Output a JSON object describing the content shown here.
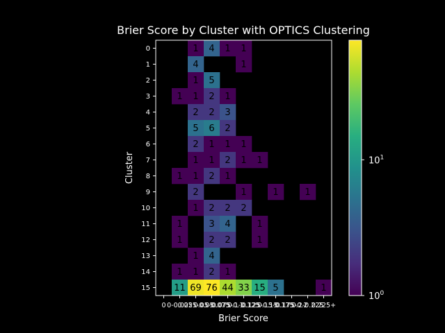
{
  "chart_data": {
    "type": "heatmap",
    "title": "Brier Score by Cluster with OPTICS Clustering",
    "xlabel": "Brier Score",
    "ylabel": "Cluster",
    "x_tick_labels": [
      "0",
      "0-0.025",
      "0.025-0.05",
      "0.05-0.075",
      "0.075-0.1",
      "0.1-0.125",
      "0.125-0.15",
      "0.15-0.175",
      "0.175-0.2",
      "0.2-0.225",
      "0.225+"
    ],
    "y_tick_labels": [
      "0",
      "1",
      "2",
      "3",
      "4",
      "5",
      "6",
      "7",
      "8",
      "9",
      "10",
      "11",
      "12",
      "13",
      "14",
      "15"
    ],
    "values": [
      [
        null,
        null,
        1,
        4,
        1,
        1,
        null,
        null,
        null,
        null,
        null
      ],
      [
        null,
        null,
        4,
        null,
        null,
        1,
        null,
        null,
        null,
        null,
        null
      ],
      [
        null,
        null,
        1,
        5,
        null,
        null,
        null,
        null,
        null,
        null,
        null
      ],
      [
        null,
        1,
        1,
        2,
        1,
        null,
        null,
        null,
        null,
        null,
        null
      ],
      [
        null,
        null,
        2,
        2,
        3,
        null,
        null,
        null,
        null,
        null,
        null
      ],
      [
        null,
        null,
        5,
        6,
        2,
        null,
        null,
        null,
        null,
        null,
        null
      ],
      [
        null,
        null,
        2,
        1,
        1,
        1,
        null,
        null,
        null,
        null,
        null
      ],
      [
        null,
        null,
        1,
        1,
        2,
        1,
        1,
        null,
        null,
        null,
        null
      ],
      [
        null,
        1,
        1,
        2,
        1,
        null,
        null,
        null,
        null,
        null,
        null
      ],
      [
        null,
        null,
        2,
        null,
        null,
        1,
        null,
        1,
        null,
        1,
        null
      ],
      [
        null,
        null,
        1,
        2,
        2,
        2,
        null,
        null,
        null,
        null,
        null
      ],
      [
        null,
        1,
        null,
        3,
        4,
        null,
        1,
        null,
        null,
        null,
        null
      ],
      [
        null,
        1,
        null,
        2,
        2,
        null,
        1,
        null,
        null,
        null,
        null
      ],
      [
        null,
        null,
        1,
        4,
        null,
        null,
        null,
        null,
        null,
        null,
        null
      ],
      [
        null,
        1,
        1,
        2,
        1,
        null,
        null,
        null,
        null,
        null,
        null
      ],
      [
        null,
        11,
        69,
        76,
        44,
        33,
        15,
        5,
        null,
        null,
        1
      ]
    ],
    "colorbar": {
      "scale": "log",
      "colormap": "viridis",
      "range": [
        1,
        76
      ],
      "tick_labels": [
        {
          "value": 1,
          "base": "10",
          "exp": "0"
        },
        {
          "value": 10,
          "base": "10",
          "exp": "1"
        }
      ]
    },
    "grid": false
  }
}
